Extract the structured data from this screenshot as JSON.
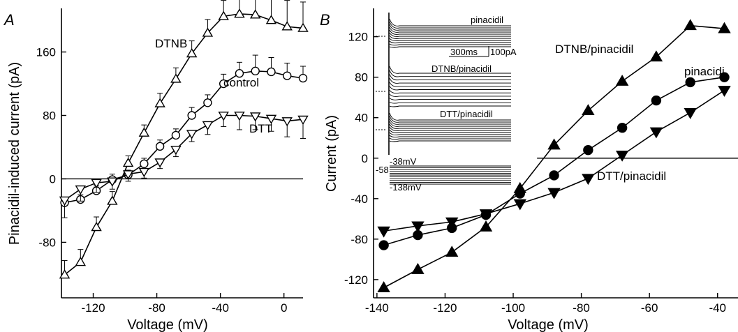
{
  "chart_data": [
    {
      "panel": "A",
      "type": "line",
      "xlabel": "Voltage (mV)",
      "ylabel": "Pinacidil-induced current (pA)",
      "xlim": [
        -140,
        12
      ],
      "ylim": [
        -150,
        215
      ],
      "xticks": [
        -120,
        -80,
        -40,
        0
      ],
      "yticks": [
        -80,
        0,
        80,
        160
      ],
      "zero_line": true,
      "x": [
        -138,
        -128,
        -118,
        -108,
        -98,
        -88,
        -78,
        -68,
        -58,
        -48,
        -38,
        -28,
        -18,
        -8,
        2,
        12
      ],
      "series": [
        {
          "name": "DTNB",
          "marker": "triangle-up-open",
          "values": [
            -121,
            -105,
            -61,
            -28,
            20,
            58,
            95,
            126,
            158,
            184,
            205,
            208,
            207,
            200,
            192,
            190
          ],
          "err": [
            18,
            16,
            13,
            12,
            9,
            10,
            13,
            14,
            16,
            17,
            20,
            25,
            28,
            33,
            33,
            33
          ]
        },
        {
          "name": "control",
          "marker": "circle-open",
          "values": [
            -30,
            -26,
            -15,
            -1,
            5,
            19,
            41,
            55,
            80,
            96,
            120,
            133,
            136,
            135,
            130,
            127
          ],
          "err": [
            6,
            6,
            6,
            7,
            6,
            7,
            8,
            8,
            10,
            10,
            12,
            14,
            20,
            18,
            16,
            15
          ]
        },
        {
          "name": "DTT",
          "marker": "triangle-down-open",
          "values": [
            -27,
            -13,
            -5,
            -3,
            6,
            9,
            21,
            37,
            57,
            68,
            80,
            80,
            79,
            76,
            73,
            75
          ],
          "err": [
            22,
            15,
            12,
            10,
            9,
            8,
            8,
            9,
            10,
            12,
            14,
            18,
            17,
            16,
            20,
            24
          ]
        }
      ],
      "annotations": [
        "DTNB",
        "control",
        "DTT"
      ]
    },
    {
      "panel": "B",
      "type": "line",
      "xlabel": "Voltage  (mV)",
      "ylabel": "Current (pA)",
      "xlim": [
        -141,
        -34
      ],
      "ylim": [
        -138,
        148
      ],
      "xticks": [
        -140,
        -120,
        -100,
        -80,
        -60,
        -40
      ],
      "yticks": [
        -120,
        -80,
        -40,
        0,
        40,
        80,
        120
      ],
      "zero_line_from": -93,
      "series": [
        {
          "name": "DTNB/pinacidil",
          "marker": "triangle-up-filled",
          "x": [
            -138,
            -128,
            -118,
            -108,
            -98,
            -88,
            -78,
            -68,
            -58,
            -48,
            -38
          ],
          "values": [
            -128,
            -110,
            -93,
            -68,
            -30,
            13,
            47,
            76,
            100,
            131,
            128
          ]
        },
        {
          "name": "pinacidi",
          "marker": "circle-filled",
          "x": [
            -138,
            -128,
            -118,
            -108,
            -98,
            -88,
            -78,
            -68,
            -58,
            -48,
            -38
          ],
          "values": [
            -86,
            -76,
            -69,
            -56,
            -35,
            -17,
            8,
            30,
            57,
            75,
            80
          ]
        },
        {
          "name": "DTT/pinacidil",
          "marker": "triangle-down-filled",
          "x": [
            -138,
            -128,
            -118,
            -108,
            -98,
            -88,
            -78,
            -68,
            -58,
            -48,
            -38
          ],
          "values": [
            -72,
            -67,
            -63,
            -55,
            -45,
            -34,
            -20,
            3,
            26,
            45,
            67
          ]
        }
      ],
      "inset": {
        "labels": {
          "pinacidil": "pinacidil",
          "dtnb": "DTNB/pinacidil",
          "dtt": "DTT/pinacidil",
          "scale_time": "300ms",
          "scale_current": "100pA",
          "v_hold": "-38mV",
          "v_base": "-58",
          "v_min": "-138mV"
        },
        "step_count": 11
      }
    }
  ]
}
